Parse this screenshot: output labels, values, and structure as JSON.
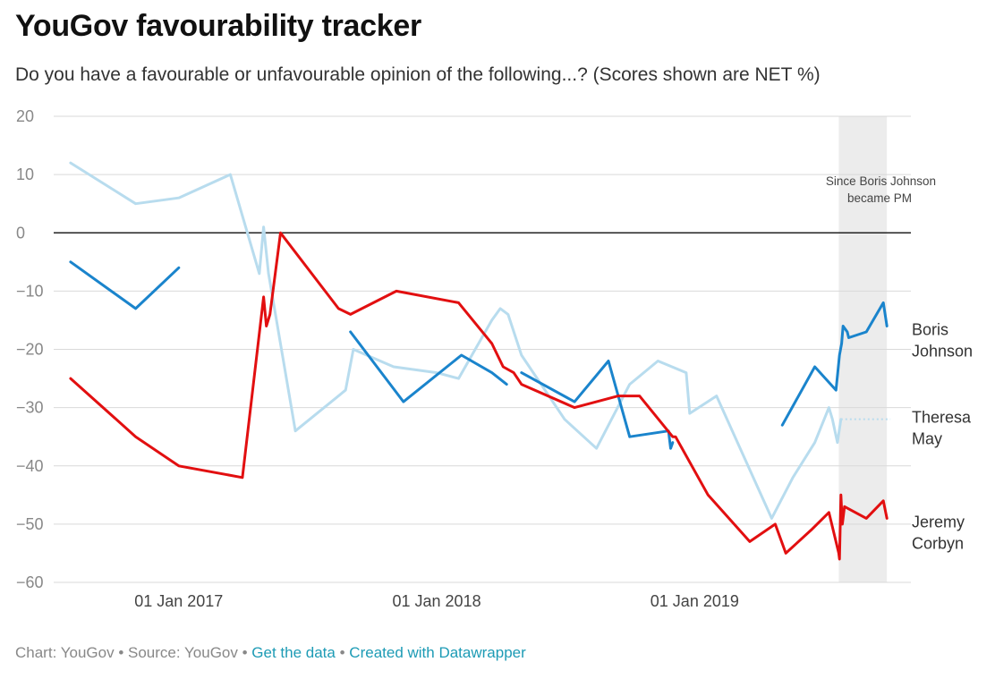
{
  "header": {
    "title": "YouGov favourability tracker",
    "subtitle": "Do you have a favourable or unfavourable opinion of the following...? (Scores shown are NET %)"
  },
  "footer": {
    "chart_credit": "Chart: YouGov",
    "source": "Source: YouGov",
    "get_data": "Get the data",
    "created_with": "Created with Datawrapper",
    "separator": "•"
  },
  "colors": {
    "boris_johnson": "#1a84cc",
    "theresa_may": "#b8dcee",
    "jeremy_corbyn": "#e20f10",
    "highlight_band": "#ececec",
    "grid": "#d9d9d9",
    "zero_line": "#222222",
    "link": "#1d9bb5"
  },
  "chart_data": {
    "type": "line",
    "title": "YouGov favourability tracker",
    "subtitle": "Do you have a favourable or unfavourable opinion of the following...? (Scores shown are NET %)",
    "ylim": [
      -60,
      20
    ],
    "y_ticks": [
      20,
      10,
      0,
      -10,
      -20,
      -30,
      -40,
      -50,
      -60
    ],
    "xlim": [
      "2016-07-27",
      "2019-10-15"
    ],
    "x_ticks": [
      {
        "date": "2017-01-01",
        "label": "01 Jan 2017"
      },
      {
        "date": "2018-01-01",
        "label": "01 Jan 2018"
      },
      {
        "date": "2019-01-01",
        "label": "01 Jan 2019"
      }
    ],
    "grid": true,
    "highlight": {
      "from": "2019-07-24",
      "to": "2019-09-30",
      "label_line1": "Since Boris Johnson",
      "label_line2": "became PM"
    },
    "series": [
      {
        "name": "Theresa May",
        "label_line1": "Theresa",
        "label_line2": "May",
        "color": "#b8dcee",
        "points": [
          [
            "2016-08-01",
            12
          ],
          [
            "2016-11-01",
            5
          ],
          [
            "2017-01-01",
            6
          ],
          [
            "2017-03-15",
            10
          ],
          [
            "2017-04-25",
            -7
          ],
          [
            "2017-05-01",
            1
          ],
          [
            "2017-05-08",
            -7
          ],
          [
            "2017-06-15",
            -34
          ],
          [
            "2017-08-25",
            -27
          ],
          [
            "2017-09-05",
            -20
          ],
          [
            "2017-11-01",
            -23
          ],
          [
            "2018-01-01",
            -24
          ],
          [
            "2018-02-01",
            -25
          ],
          [
            "2018-03-20",
            -15
          ],
          [
            "2018-04-01",
            -13
          ],
          [
            "2018-04-12",
            -14
          ],
          [
            "2018-05-01",
            -21
          ],
          [
            "2018-07-01",
            -32
          ],
          [
            "2018-08-15",
            -37
          ],
          [
            "2018-10-01",
            -26
          ],
          [
            "2018-11-10",
            -22
          ],
          [
            "2018-12-20",
            -24
          ],
          [
            "2018-12-25",
            -31
          ],
          [
            "2019-02-01",
            -28
          ],
          [
            "2019-04-20",
            -49
          ],
          [
            "2019-05-20",
            -42
          ],
          [
            "2019-06-20",
            -36
          ],
          [
            "2019-07-10",
            -30
          ],
          [
            "2019-07-15",
            -32
          ],
          [
            "2019-07-22",
            -36
          ],
          [
            "2019-07-27",
            -32
          ]
        ],
        "dotted_extension_to": "2019-10-05"
      },
      {
        "name": "Boris Johnson",
        "label_line1": "Boris",
        "label_line2": "Johnson",
        "color": "#1a84cc",
        "segments": [
          [
            [
              "2016-08-01",
              -5
            ],
            [
              "2016-11-01",
              -13
            ],
            [
              "2017-01-01",
              -6
            ]
          ],
          [
            [
              "2017-09-01",
              -17
            ],
            [
              "2017-11-15",
              -29
            ],
            [
              "2018-02-05",
              -21
            ],
            [
              "2018-03-20",
              -24
            ],
            [
              "2018-04-10",
              -26
            ]
          ],
          [
            [
              "2018-05-01",
              -24
            ],
            [
              "2018-07-15",
              -29
            ],
            [
              "2018-09-01",
              -22
            ],
            [
              "2018-10-01",
              -35
            ],
            [
              "2018-11-25",
              -34
            ],
            [
              "2018-11-28",
              -37
            ],
            [
              "2018-12-01",
              -36
            ]
          ],
          [
            [
              "2019-05-05",
              -33
            ],
            [
              "2019-06-20",
              -23
            ],
            [
              "2019-07-20",
              -27
            ],
            [
              "2019-07-25",
              -21
            ],
            [
              "2019-07-28",
              -19
            ],
            [
              "2019-07-30",
              -16
            ],
            [
              "2019-08-05",
              -17
            ],
            [
              "2019-08-07",
              -18
            ],
            [
              "2019-09-01",
              -17
            ],
            [
              "2019-09-25",
              -12
            ],
            [
              "2019-09-30",
              -16
            ]
          ]
        ]
      },
      {
        "name": "Jeremy Corbyn",
        "label_line1": "Jeremy",
        "label_line2": "Corbyn",
        "color": "#e20f10",
        "points": [
          [
            "2016-08-01",
            -25
          ],
          [
            "2016-11-01",
            -35
          ],
          [
            "2017-01-01",
            -40
          ],
          [
            "2017-04-01",
            -42
          ],
          [
            "2017-05-01",
            -11
          ],
          [
            "2017-05-05",
            -16
          ],
          [
            "2017-05-10",
            -14
          ],
          [
            "2017-05-25",
            0
          ],
          [
            "2017-08-15",
            -13
          ],
          [
            "2017-09-01",
            -14
          ],
          [
            "2017-11-05",
            -10
          ],
          [
            "2018-02-01",
            -12
          ],
          [
            "2018-03-20",
            -19
          ],
          [
            "2018-04-05",
            -23
          ],
          [
            "2018-04-20",
            -24
          ],
          [
            "2018-05-01",
            -26
          ],
          [
            "2018-07-15",
            -30
          ],
          [
            "2018-09-15",
            -28
          ],
          [
            "2018-10-15",
            -28
          ],
          [
            "2018-12-01",
            -35
          ],
          [
            "2018-12-05",
            -35
          ],
          [
            "2019-01-20",
            -45
          ],
          [
            "2019-03-20",
            -53
          ],
          [
            "2019-04-25",
            -50
          ],
          [
            "2019-05-10",
            -55
          ],
          [
            "2019-06-15",
            -51
          ],
          [
            "2019-07-10",
            -48
          ],
          [
            "2019-07-24",
            -55
          ],
          [
            "2019-07-25",
            -56
          ],
          [
            "2019-07-27",
            -45
          ],
          [
            "2019-07-29",
            -50
          ],
          [
            "2019-08-01",
            -47
          ],
          [
            "2019-09-01",
            -49
          ],
          [
            "2019-09-25",
            -46
          ],
          [
            "2019-09-30",
            -49
          ]
        ]
      }
    ]
  }
}
